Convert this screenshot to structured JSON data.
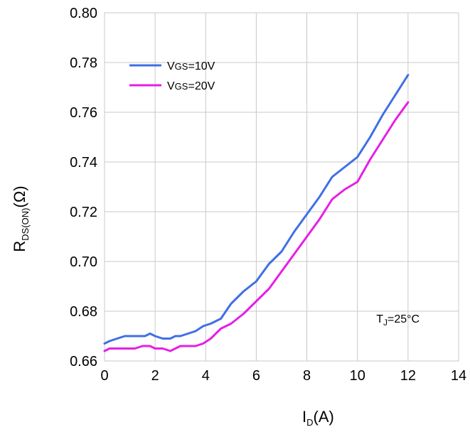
{
  "chart_data": {
    "type": "line",
    "xlabel": "I",
    "xlabel_sub": "D",
    "xlabel_unit": "(A)",
    "ylabel": "R",
    "ylabel_sub": "DS(ON)",
    "ylabel_unit": "(Ω)",
    "xlim": [
      0,
      14
    ],
    "ylim": [
      0.66,
      0.8
    ],
    "xticks": [
      "0",
      "2",
      "4",
      "6",
      "8",
      "10",
      "12",
      "14"
    ],
    "yticks": [
      "0.66",
      "0.68",
      "0.70",
      "0.72",
      "0.74",
      "0.76",
      "0.78",
      "0.80"
    ],
    "grid": true,
    "legend_position": "top-left",
    "annotation": {
      "main": "T",
      "sub": "J",
      "rest": "=25°C",
      "x": 11.6,
      "y": 0.6755
    },
    "series": [
      {
        "name_main": "V",
        "name_sub": "GS",
        "name_rest": "=10V",
        "color": "#3f6fe6",
        "x": [
          0,
          0.2,
          0.5,
          0.8,
          1.2,
          1.6,
          1.8,
          2.0,
          2.3,
          2.6,
          2.8,
          3.0,
          3.3,
          3.6,
          3.9,
          4.2,
          4.6,
          5.0,
          5.5,
          6.0,
          6.5,
          7.0,
          7.5,
          8.0,
          8.5,
          9.0,
          9.5,
          10.0,
          10.5,
          11.0,
          11.5,
          12.0
        ],
        "y": [
          0.667,
          0.668,
          0.669,
          0.67,
          0.67,
          0.67,
          0.671,
          0.67,
          0.669,
          0.669,
          0.67,
          0.67,
          0.671,
          0.672,
          0.674,
          0.675,
          0.677,
          0.683,
          0.688,
          0.692,
          0.699,
          0.704,
          0.712,
          0.719,
          0.726,
          0.734,
          0.738,
          0.742,
          0.75,
          0.759,
          0.767,
          0.775
        ]
      },
      {
        "name_main": "V",
        "name_sub": "GS",
        "name_rest": "=20V",
        "color": "#e61ee6",
        "x": [
          0,
          0.2,
          0.5,
          0.8,
          1.2,
          1.5,
          1.8,
          2.0,
          2.3,
          2.6,
          2.8,
          3.0,
          3.3,
          3.6,
          3.9,
          4.2,
          4.6,
          5.0,
          5.5,
          6.0,
          6.5,
          7.0,
          7.5,
          8.0,
          8.5,
          9.0,
          9.5,
          10.0,
          10.5,
          11.0,
          11.5,
          12.0
        ],
        "y": [
          0.664,
          0.665,
          0.665,
          0.665,
          0.665,
          0.666,
          0.666,
          0.665,
          0.665,
          0.664,
          0.665,
          0.666,
          0.666,
          0.666,
          0.667,
          0.669,
          0.673,
          0.675,
          0.679,
          0.684,
          0.689,
          0.696,
          0.703,
          0.71,
          0.717,
          0.725,
          0.729,
          0.732,
          0.741,
          0.749,
          0.757,
          0.764
        ]
      }
    ]
  }
}
